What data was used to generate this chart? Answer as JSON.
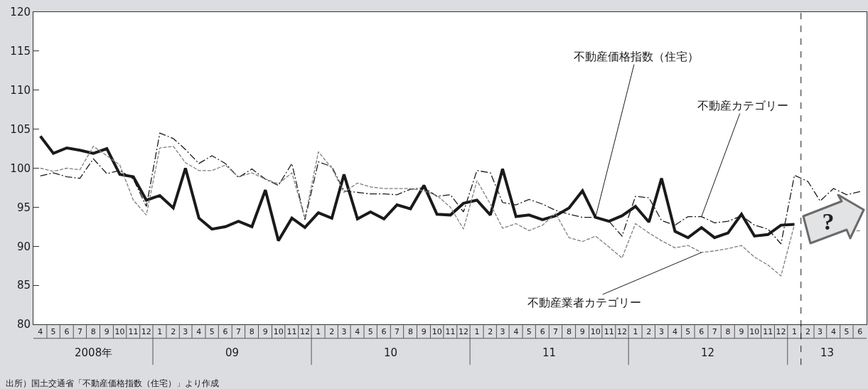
{
  "chart_data": {
    "type": "line",
    "x": [
      "2008-04",
      "2008-05",
      "2008-06",
      "2008-07",
      "2008-08",
      "2008-09",
      "2008-10",
      "2008-11",
      "2008-12",
      "2009-01",
      "2009-02",
      "2009-03",
      "2009-04",
      "2009-05",
      "2009-06",
      "2009-07",
      "2009-08",
      "2009-09",
      "2009-10",
      "2009-11",
      "2009-12",
      "2010-01",
      "2010-02",
      "2010-03",
      "2010-04",
      "2010-05",
      "2010-06",
      "2010-07",
      "2010-08",
      "2010-09",
      "2010-10",
      "2010-11",
      "2010-12",
      "2011-01",
      "2011-02",
      "2011-03",
      "2011-04",
      "2011-05",
      "2011-06",
      "2011-07",
      "2011-08",
      "2011-09",
      "2011-10",
      "2011-11",
      "2011-12",
      "2012-01",
      "2012-02",
      "2012-03",
      "2012-04",
      "2012-05",
      "2012-06",
      "2012-07",
      "2012-08",
      "2012-09",
      "2012-10",
      "2012-11",
      "2012-12",
      "2013-01",
      "2013-02",
      "2013-03",
      "2013-04",
      "2013-05",
      "2013-06"
    ],
    "series": [
      {
        "name": "不動産価格指数（住宅）",
        "color": "#1a1a1a",
        "line_style": "solid",
        "values": [
          104.1,
          101.9,
          102.6,
          102.3,
          101.9,
          102.5,
          99.2,
          98.9,
          95.9,
          96.5,
          94.9,
          100.0,
          93.6,
          92.2,
          92.5,
          93.2,
          92.5,
          97.2,
          90.7,
          93.6,
          92.4,
          94.3,
          93.6,
          99.2,
          93.5,
          94.4,
          93.5,
          95.3,
          94.8,
          97.8,
          94.1,
          94.0,
          95.5,
          95.9,
          94.0,
          99.9,
          93.8,
          94.0,
          93.4,
          93.9,
          94.9,
          97.1,
          93.7,
          93.2,
          93.9,
          95.1,
          93.1,
          98.7,
          91.9,
          91.1,
          92.4,
          91.1,
          91.7,
          94.1,
          91.3,
          91.5,
          92.7,
          92.8,
          null,
          null,
          null,
          null,
          null
        ]
      },
      {
        "name": "不動産カテゴリー",
        "color": "#1a1a1a",
        "line_style": "dashdot",
        "values": [
          99.0,
          99.4,
          98.9,
          98.7,
          101.2,
          99.3,
          99.7,
          98.6,
          95.1,
          104.5,
          103.8,
          102.4,
          100.6,
          101.6,
          100.6,
          98.8,
          99.9,
          98.6,
          97.8,
          100.6,
          93.4,
          100.8,
          100.2,
          97.1,
          96.9,
          96.7,
          96.7,
          96.6,
          97.3,
          97.5,
          96.4,
          96.6,
          94.4,
          99.7,
          99.4,
          95.6,
          95.3,
          96.0,
          95.4,
          94.6,
          94.1,
          93.7,
          93.7,
          93.2,
          91.3,
          96.4,
          96.2,
          93.3,
          92.7,
          93.8,
          93.8,
          93.0,
          93.2,
          93.9,
          92.7,
          92.2,
          90.3,
          99.1,
          98.3,
          95.8,
          97.4,
          96.6,
          97.0
        ]
      },
      {
        "name": "不動産業者カテゴリー",
        "color": "#7f7f7f",
        "line_style": "dashed",
        "values": [
          100.0,
          99.6,
          100.0,
          99.8,
          102.8,
          101.6,
          100.4,
          95.9,
          94.0,
          102.6,
          102.8,
          100.7,
          99.7,
          99.7,
          100.4,
          98.9,
          99.4,
          98.6,
          98.0,
          99.4,
          93.6,
          102.1,
          100.0,
          96.9,
          98.1,
          97.6,
          97.4,
          97.4,
          97.4,
          97.1,
          96.5,
          95.0,
          92.2,
          98.4,
          95.4,
          92.3,
          92.9,
          92.0,
          92.7,
          94.2,
          91.1,
          90.6,
          91.3,
          89.9,
          88.5,
          92.9,
          91.7,
          90.7,
          89.8,
          90.1,
          89.2,
          89.4,
          89.7,
          90.1,
          88.6,
          87.6,
          86.2,
          92.8,
          null,
          null,
          null,
          91.9,
          92.0
        ]
      }
    ],
    "xlim": [
      "2008-03-16",
      "2013-06-16"
    ],
    "xticks": [
      {
        "value": "2008-04",
        "label": "4"
      },
      {
        "value": "2008-05",
        "label": "5"
      },
      {
        "value": "2008-06",
        "label": "6"
      },
      {
        "value": "2008-07",
        "label": "7"
      },
      {
        "value": "2008-08",
        "label": "8"
      },
      {
        "value": "2008-09",
        "label": "9"
      },
      {
        "value": "2008-10",
        "label": "10"
      },
      {
        "value": "2008-11",
        "label": "11"
      },
      {
        "value": "2008-12",
        "label": "12"
      },
      {
        "value": "2009-01",
        "label": "1"
      },
      {
        "value": "2009-02",
        "label": "2"
      },
      {
        "value": "2009-03",
        "label": "3"
      },
      {
        "value": "2009-04",
        "label": "4"
      },
      {
        "value": "2009-05",
        "label": "5"
      },
      {
        "value": "2009-06",
        "label": "6"
      },
      {
        "value": "2009-07",
        "label": "7"
      },
      {
        "value": "2009-08",
        "label": "8"
      },
      {
        "value": "2009-09",
        "label": "9"
      },
      {
        "value": "2009-10",
        "label": "10"
      },
      {
        "value": "2009-11",
        "label": "11"
      },
      {
        "value": "2009-12",
        "label": "12"
      },
      {
        "value": "2010-01",
        "label": "1"
      },
      {
        "value": "2010-02",
        "label": "2"
      },
      {
        "value": "2010-03",
        "label": "3"
      },
      {
        "value": "2010-04",
        "label": "4"
      },
      {
        "value": "2010-05",
        "label": "5"
      },
      {
        "value": "2010-06",
        "label": "6"
      },
      {
        "value": "2010-07",
        "label": "7"
      },
      {
        "value": "2010-08",
        "label": "8"
      },
      {
        "value": "2010-09",
        "label": "9"
      },
      {
        "value": "2010-10",
        "label": "10"
      },
      {
        "value": "2010-11",
        "label": "11"
      },
      {
        "value": "2010-12",
        "label": "12"
      },
      {
        "value": "2011-01",
        "label": "1"
      },
      {
        "value": "2011-02",
        "label": "2"
      },
      {
        "value": "2011-03",
        "label": "3"
      },
      {
        "value": "2011-04",
        "label": "4"
      },
      {
        "value": "2011-05",
        "label": "5"
      },
      {
        "value": "2011-06",
        "label": "6"
      },
      {
        "value": "2011-07",
        "label": "7"
      },
      {
        "value": "2011-08",
        "label": "8"
      },
      {
        "value": "2011-09",
        "label": "9"
      },
      {
        "value": "2011-10",
        "label": "10"
      },
      {
        "value": "2011-11",
        "label": "11"
      },
      {
        "value": "2011-12",
        "label": "12"
      },
      {
        "value": "2012-01",
        "label": "1"
      },
      {
        "value": "2012-02",
        "label": "2"
      },
      {
        "value": "2012-03",
        "label": "3"
      },
      {
        "value": "2012-04",
        "label": "4"
      },
      {
        "value": "2012-05",
        "label": "5"
      },
      {
        "value": "2012-06",
        "label": "6"
      },
      {
        "value": "2012-07",
        "label": "7"
      },
      {
        "value": "2012-08",
        "label": "8"
      },
      {
        "value": "2012-09",
        "label": "9"
      },
      {
        "value": "2012-10",
        "label": "10"
      },
      {
        "value": "2012-11",
        "label": "11"
      },
      {
        "value": "2012-12",
        "label": "12"
      },
      {
        "value": "2013-01",
        "label": "1"
      },
      {
        "value": "2013-02",
        "label": "2"
      },
      {
        "value": "2013-03",
        "label": "3"
      },
      {
        "value": "2013-04",
        "label": "4"
      },
      {
        "value": "2013-05",
        "label": "5"
      },
      {
        "value": "2013-06",
        "label": "6"
      }
    ],
    "ylim": [
      80,
      120
    ],
    "yticks": [
      80,
      85,
      90,
      95,
      100,
      105,
      110,
      115,
      120
    ],
    "grid": false,
    "legend": false,
    "ref_lines": [
      {
        "axis": "x",
        "value": "2013-01-16",
        "line_style": "dashed",
        "color": "#1a1a1a"
      }
    ],
    "annotations": [
      "2008年",
      "09",
      "10",
      "11",
      "12",
      "13",
      "?",
      "出所）国土交通省「不動産価格指数（住宅）」より作成"
    ]
  }
}
